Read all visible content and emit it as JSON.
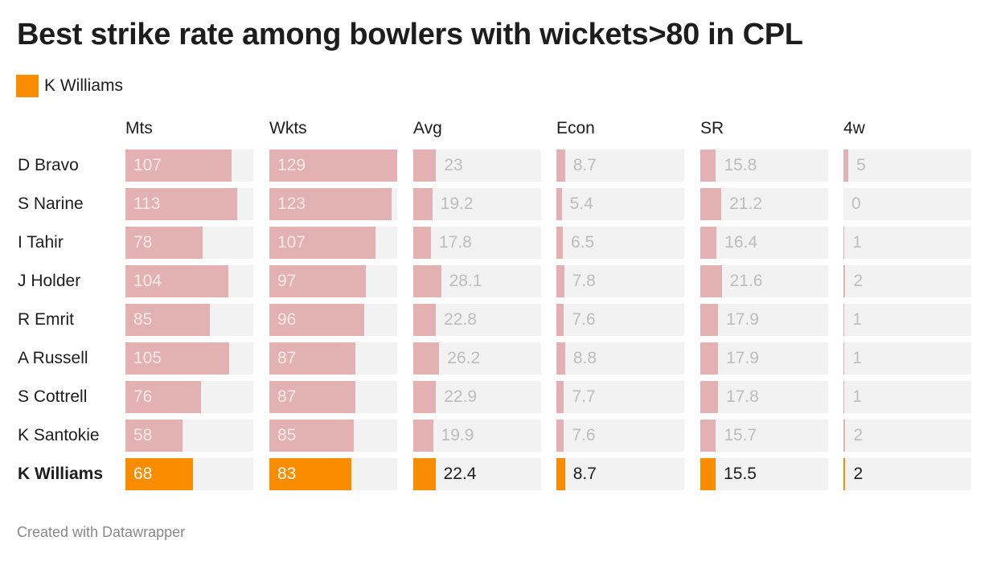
{
  "title": "Best strike rate among bowlers with wickets>80 in CPL",
  "legend": {
    "label": "K Williams",
    "color": "#fa8c00"
  },
  "footer": "Created with Datawrapper",
  "colors": {
    "bar": "#e3b1b1",
    "highlight": "#fa8c00",
    "track": "#f2f2f2",
    "muted_text": "#bdbdbd",
    "inside_text": "#f7eaea"
  },
  "chart_data": {
    "type": "table",
    "title": "Best strike rate among bowlers with wickets>80 in CPL",
    "columns": [
      "Mts",
      "Wkts",
      "Avg",
      "Econ",
      "SR",
      "4w"
    ],
    "scale_max": 129,
    "highlight": "K Williams",
    "rows": [
      {
        "name": "D Bravo",
        "values": [
          "107",
          "129",
          "23",
          "8.7",
          "15.8",
          "5"
        ]
      },
      {
        "name": "S Narine",
        "values": [
          "113",
          "123",
          "19.2",
          "5.4",
          "21.2",
          "0"
        ]
      },
      {
        "name": "I Tahir",
        "values": [
          "78",
          "107",
          "17.8",
          "6.5",
          "16.4",
          "1"
        ]
      },
      {
        "name": "J Holder",
        "values": [
          "104",
          "97",
          "28.1",
          "7.8",
          "21.6",
          "2"
        ]
      },
      {
        "name": "R Emrit",
        "values": [
          "85",
          "96",
          "22.8",
          "7.6",
          "17.9",
          "1"
        ]
      },
      {
        "name": "A Russell",
        "values": [
          "105",
          "87",
          "26.2",
          "8.8",
          "17.9",
          "1"
        ]
      },
      {
        "name": "S Cottrell",
        "values": [
          "76",
          "87",
          "22.9",
          "7.7",
          "17.8",
          "1"
        ]
      },
      {
        "name": "K Santokie",
        "values": [
          "58",
          "85",
          "19.9",
          "7.6",
          "15.7",
          "2"
        ]
      },
      {
        "name": "K Williams",
        "values": [
          "68",
          "83",
          "22.4",
          "8.7",
          "15.5",
          "2"
        ]
      }
    ]
  }
}
